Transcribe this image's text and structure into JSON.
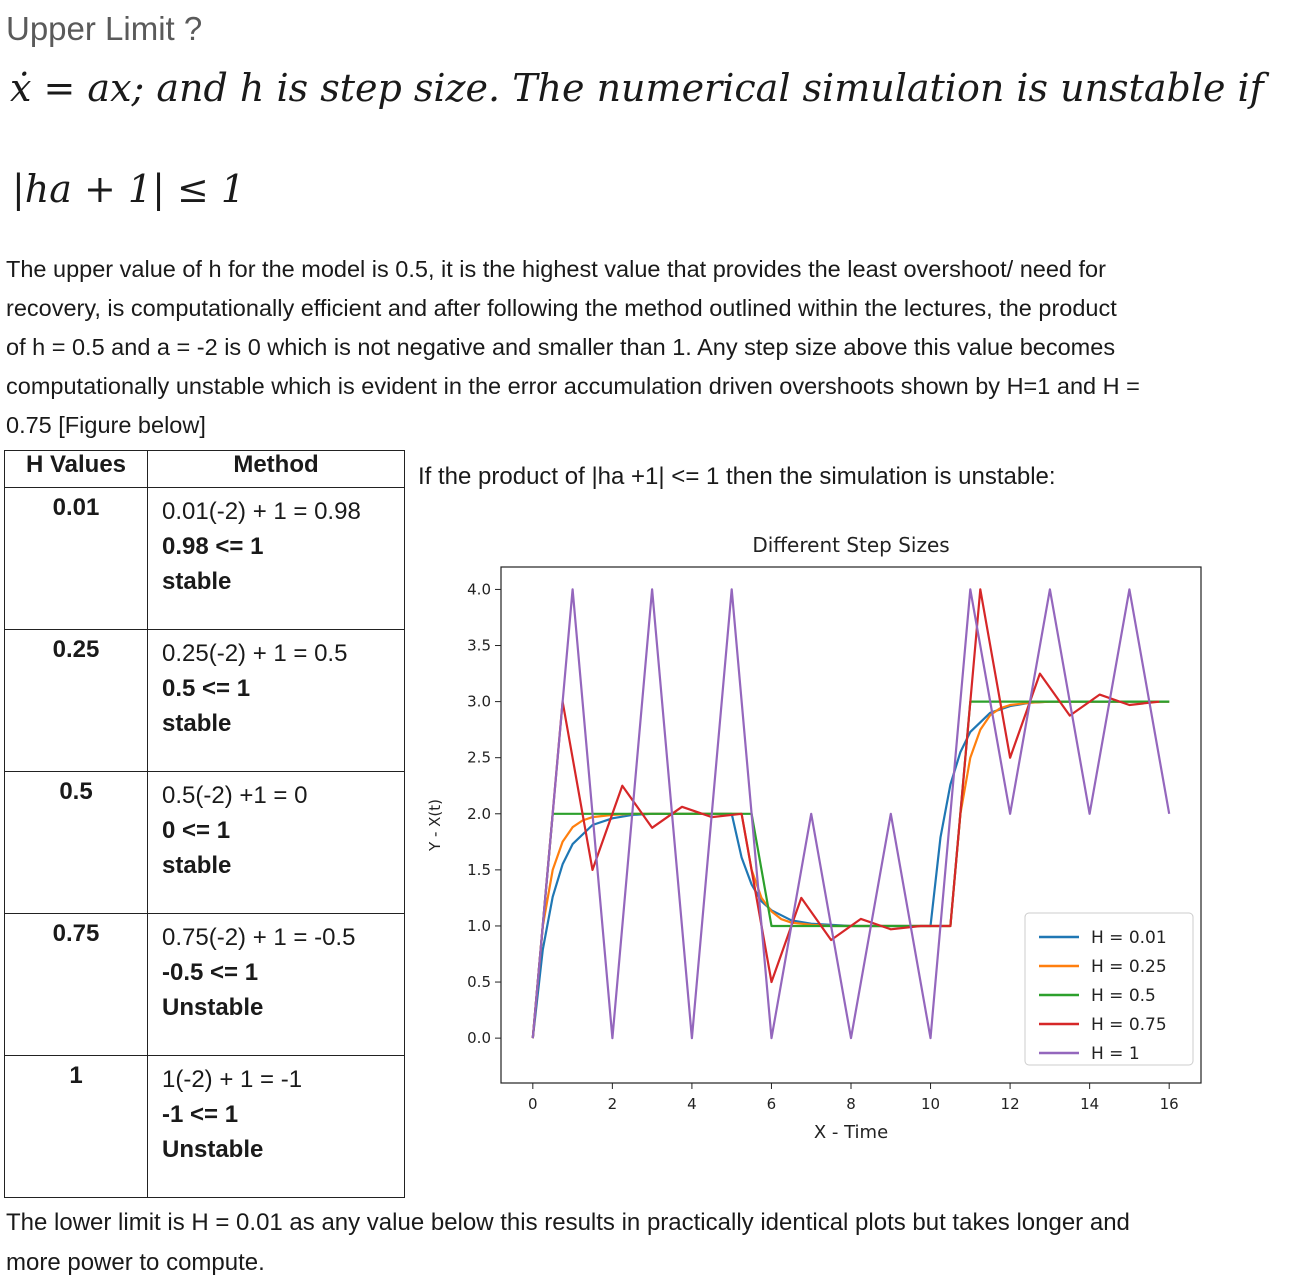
{
  "heading": "Upper Limit ?",
  "equation_1": "ẋ = ax; and h is step size. The numerical simulation is unstable if",
  "equation_2": "|ha + 1| ≤ 1",
  "paragraph": [
    "The upper value of h for the model is 0.5, it is the highest value that provides the least overshoot/ need for",
    "recovery, is computationally efficient and after following the method outlined within the lectures, the product",
    "of h = 0.5 and a = -2 is 0 which is not negative and smaller than 1. Any step size above this value becomes",
    "computationally unstable which is evident in the error accumulation driven overshoots shown by H=1 and H =",
    "0.75 [Figure below]"
  ],
  "table": {
    "headers": [
      "H Values",
      "Method"
    ],
    "rows": [
      {
        "h": "0.01",
        "calc": "0.01(-2) + 1 = 0.98",
        "check": "0.98 <= 1",
        "verdict": "stable"
      },
      {
        "h": "0.25",
        "calc": "0.25(-2) + 1 = 0.5",
        "check": "0.5 <= 1",
        "verdict": "stable"
      },
      {
        "h": "0.5",
        "calc": "0.5(-2) +1 = 0",
        "check": "0 <= 1",
        "verdict": "stable"
      },
      {
        "h": "0.75",
        "calc": "0.75(-2) + 1 = -0.5",
        "check": "-0.5 <= 1",
        "verdict": "Unstable"
      },
      {
        "h": "1",
        "calc": "1(-2) + 1 = -1",
        "check": "-1 <= 1",
        "verdict": "Unstable"
      }
    ]
  },
  "chart_caption": "If the product of |ha +1| <= 1 then the simulation is unstable:",
  "chart_data": {
    "type": "line",
    "title": "Different Step Sizes",
    "xlabel": "X - Time",
    "ylabel": "Y - X(t)",
    "xlim": [
      -0.8,
      16.8
    ],
    "ylim": [
      -0.4,
      4.2
    ],
    "xticks": [
      0,
      2,
      4,
      6,
      8,
      10,
      12,
      14,
      16
    ],
    "yticks": [
      0.0,
      0.5,
      1.0,
      1.5,
      2.0,
      2.5,
      3.0,
      3.5,
      4.0
    ],
    "ytick_labels": [
      "0.0",
      "0.5",
      "1.0",
      "1.5",
      "2.0",
      "2.5",
      "3.0",
      "3.5",
      "4.0"
    ],
    "legend_position": "lower-right",
    "grid": false,
    "series": [
      {
        "name": "H = 0.01",
        "color": "#1f77b4",
        "x": [
          0,
          0.25,
          0.5,
          0.75,
          1,
          1.5,
          2,
          2.5,
          3,
          4,
          5,
          5.25,
          5.5,
          5.75,
          6,
          6.5,
          7,
          7.5,
          8,
          9,
          10,
          10.25,
          10.5,
          10.75,
          11,
          11.5,
          12,
          12.5,
          13,
          14,
          15,
          16
        ],
        "y": [
          0,
          0.79,
          1.26,
          1.55,
          1.73,
          1.9,
          1.96,
          1.99,
          2.0,
          2.0,
          2.0,
          1.61,
          1.37,
          1.22,
          1.14,
          1.05,
          1.02,
          1.01,
          1.0,
          1.0,
          1.0,
          1.79,
          2.26,
          2.55,
          2.73,
          2.9,
          2.96,
          2.99,
          3.0,
          3.0,
          3.0,
          3.0
        ]
      },
      {
        "name": "H = 0.25",
        "color": "#ff7f0e",
        "x": [
          0,
          0.25,
          0.5,
          0.75,
          1,
          1.25,
          1.5,
          1.75,
          2,
          2.5,
          3,
          4,
          5,
          5.25,
          5.5,
          5.75,
          6,
          6.25,
          6.5,
          6.75,
          7,
          7.5,
          8,
          9,
          10,
          10.25,
          10.5,
          10.75,
          11,
          11.25,
          11.5,
          11.75,
          12,
          12.5,
          13,
          14,
          15,
          16
        ],
        "y": [
          0,
          1.0,
          1.5,
          1.75,
          1.88,
          1.94,
          1.97,
          1.98,
          1.99,
          2.0,
          2.0,
          2.0,
          2.0,
          2.0,
          1.5,
          1.25,
          1.13,
          1.06,
          1.03,
          1.02,
          1.01,
          1.0,
          1.0,
          1.0,
          1.0,
          1.0,
          1.0,
          2.0,
          2.5,
          2.75,
          2.88,
          2.94,
          2.97,
          2.99,
          3.0,
          3.0,
          3.0,
          3.0
        ]
      },
      {
        "name": "H = 0.5",
        "color": "#2ca02c",
        "x": [
          0,
          0.5,
          1,
          1.5,
          2,
          3,
          4,
          5,
          5.5,
          6,
          7,
          8,
          9,
          10,
          10.5,
          11,
          12,
          13,
          14,
          15,
          16
        ],
        "y": [
          0,
          2,
          2,
          2,
          2,
          2,
          2,
          2,
          2,
          1,
          1,
          1,
          1,
          1,
          1,
          3,
          3,
          3,
          3,
          3,
          3
        ]
      },
      {
        "name": "H = 0.75",
        "color": "#d62728",
        "x": [
          0,
          0.75,
          1.5,
          2.25,
          3,
          3.75,
          4.5,
          5.25,
          6,
          6.75,
          7.5,
          8.25,
          9,
          9.75,
          10.5,
          11.25,
          12,
          12.75,
          13.5,
          14.25,
          15,
          15.75
        ],
        "y": [
          0,
          3,
          1.5,
          2.25,
          1.875,
          2.0625,
          1.97,
          2.0,
          0.5,
          1.25,
          0.875,
          1.0625,
          0.97,
          1.0,
          1.0,
          4.0,
          2.5,
          3.25,
          2.875,
          3.0625,
          2.97,
          3.0
        ]
      },
      {
        "name": "H = 1",
        "color": "#9467bd",
        "x": [
          0,
          1,
          2,
          3,
          4,
          5,
          6,
          7,
          8,
          9,
          10,
          11,
          12,
          13,
          14,
          15,
          16
        ],
        "y": [
          0,
          4,
          0,
          4,
          0,
          4,
          0,
          2,
          0,
          2,
          0,
          4,
          2,
          4,
          2,
          4,
          2
        ]
      }
    ]
  },
  "footer": [
    "The lower limit is H = 0.01 as any value below this results in practically identical plots but takes longer and",
    "more power to compute."
  ]
}
